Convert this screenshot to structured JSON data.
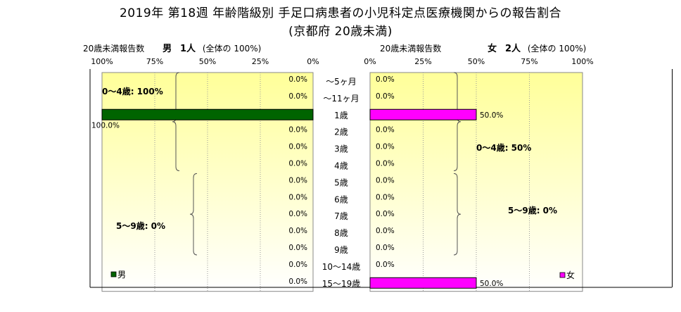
{
  "title": {
    "line1": "2019年 第18週 年齢階級別 手足口病患者の小児科定点医療機関からの報告割合",
    "line2": "(京都府 20歳未満)"
  },
  "left_header": {
    "label": "20歳未満報告数",
    "sex": "男",
    "count": "1人",
    "note": "(全体の 100%)"
  },
  "right_header": {
    "label": "20歳未満報告数",
    "sex": "女",
    "count": "2人",
    "note": "(全体の 100%)"
  },
  "colors": {
    "male": "#006400",
    "female": "#ff00ff",
    "band_top": "#ffff99"
  },
  "chart_data": [
    {
      "type": "bar",
      "title": "男",
      "orientation": "horizontal",
      "reversed_x": true,
      "xlim": [
        0,
        100
      ],
      "xticks": [
        "100%",
        "75%",
        "50%",
        "25%",
        "0%"
      ],
      "categories": [
        "〜5ヶ月",
        "〜11ヶ月",
        "1歳",
        "2歳",
        "3歳",
        "4歳",
        "5歳",
        "6歳",
        "7歳",
        "8歳",
        "9歳",
        "10〜14歳",
        "15〜19歳"
      ],
      "values": [
        0,
        0,
        100,
        0,
        0,
        0,
        0,
        0,
        0,
        0,
        0,
        0,
        0
      ],
      "labels": [
        "0.0%",
        "0.0%",
        "100.0%",
        "0.0%",
        "0.0%",
        "0.0%",
        "0.0%",
        "0.0%",
        "0.0%",
        "0.0%",
        "0.0%",
        "0.0%",
        "0.0%"
      ],
      "legend": "男",
      "legend_position": "bottom-left",
      "annotations": [
        "0〜4歳: 100%",
        "5〜9歳: 0%"
      ]
    },
    {
      "type": "bar",
      "title": "女",
      "orientation": "horizontal",
      "xlim": [
        0,
        100
      ],
      "xticks": [
        "0%",
        "25%",
        "50%",
        "75%",
        "100%"
      ],
      "categories": [
        "〜5ヶ月",
        "〜11ヶ月",
        "1歳",
        "2歳",
        "3歳",
        "4歳",
        "5歳",
        "6歳",
        "7歳",
        "8歳",
        "9歳",
        "10〜14歳",
        "15〜19歳"
      ],
      "values": [
        0,
        0,
        50,
        0,
        0,
        0,
        0,
        0,
        0,
        0,
        0,
        0,
        50
      ],
      "labels": [
        "0.0%",
        "0.0%",
        "50.0%",
        "0.0%",
        "0.0%",
        "0.0%",
        "0.0%",
        "0.0%",
        "0.0%",
        "0.0%",
        "0.0%",
        "0.0%",
        "50.0%"
      ],
      "legend": "女",
      "legend_position": "bottom-right",
      "annotations": [
        "0〜4歳: 50%",
        "5〜9歳: 0%"
      ]
    }
  ]
}
